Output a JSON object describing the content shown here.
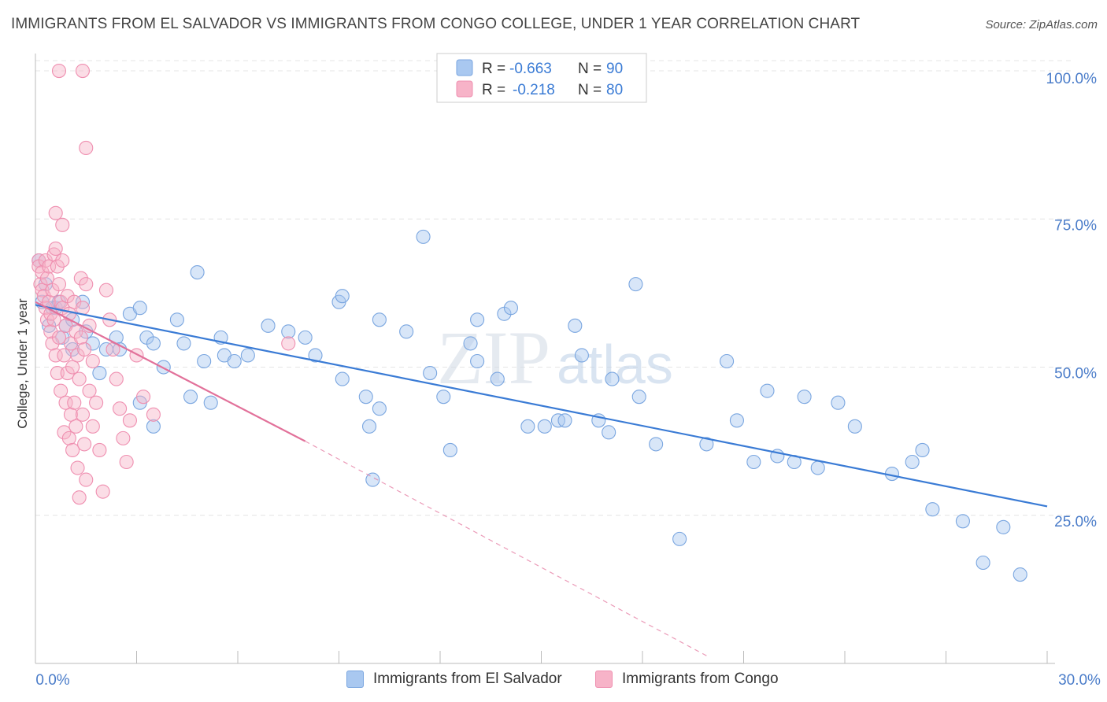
{
  "title": "IMMIGRANTS FROM EL SALVADOR VS IMMIGRANTS FROM CONGO COLLEGE, UNDER 1 YEAR CORRELATION CHART",
  "source": "Source: ZipAtlas.com",
  "watermark": {
    "zip": "ZIP",
    "atlas": "atlas"
  },
  "colors": {
    "blue_fill": "#a9c8f0",
    "blue_stroke": "#7aa6e0",
    "blue_line": "#3a7bd5",
    "pink_fill": "#f7b3c8",
    "pink_stroke": "#ef8fb0",
    "pink_line": "#e2719a",
    "axis_text": "#4a7cc9",
    "grid": "#e4e4e4"
  },
  "legend": {
    "rows": [
      {
        "r_label": "R =",
        "r_value": "-0.663",
        "n_label": "N =",
        "n_value": "90"
      },
      {
        "r_label": "R =",
        "r_value": "-0.218",
        "n_label": "N =",
        "n_value": "80"
      }
    ]
  },
  "chart_data": {
    "type": "scatter",
    "title": "IMMIGRANTS FROM EL SALVADOR VS IMMIGRANTS FROM CONGO COLLEGE, UNDER 1 YEAR CORRELATION CHART",
    "xlabel": "",
    "ylabel": "College, Under 1 year",
    "xlim": [
      0,
      30
    ],
    "ylim": [
      0,
      102
    ],
    "x_tick_labels": [
      "0.0%",
      "30.0%"
    ],
    "y_ticks": [
      25,
      50,
      75,
      100
    ],
    "y_tick_labels": [
      "25.0%",
      "50.0%",
      "75.0%",
      "100.0%"
    ],
    "grid": true,
    "legend_position": "top-center",
    "series": [
      {
        "name": "Immigrants from El Salvador",
        "color": "#a9c8f0",
        "trend": {
          "x": [
            0.0,
            30.0
          ],
          "y": [
            60.5,
            26.5
          ]
        },
        "points": [
          [
            0.1,
            68
          ],
          [
            0.2,
            61
          ],
          [
            0.3,
            64
          ],
          [
            0.4,
            57
          ],
          [
            0.5,
            60
          ],
          [
            0.6,
            60
          ],
          [
            0.7,
            61
          ],
          [
            0.8,
            55
          ],
          [
            0.9,
            57
          ],
          [
            1.1,
            58
          ],
          [
            1.1,
            53
          ],
          [
            1.4,
            61
          ],
          [
            1.5,
            56
          ],
          [
            1.7,
            54
          ],
          [
            1.9,
            49
          ],
          [
            2.1,
            53
          ],
          [
            2.4,
            55
          ],
          [
            2.5,
            53
          ],
          [
            2.8,
            59
          ],
          [
            3.1,
            60
          ],
          [
            3.1,
            44
          ],
          [
            3.3,
            55
          ],
          [
            3.5,
            54
          ],
          [
            3.5,
            40
          ],
          [
            3.8,
            50
          ],
          [
            4.2,
            58
          ],
          [
            4.4,
            54
          ],
          [
            4.6,
            45
          ],
          [
            4.8,
            66
          ],
          [
            5.0,
            51
          ],
          [
            5.2,
            44
          ],
          [
            5.5,
            55
          ],
          [
            5.6,
            52
          ],
          [
            5.9,
            51
          ],
          [
            6.3,
            52
          ],
          [
            6.9,
            57
          ],
          [
            7.5,
            56
          ],
          [
            8.0,
            55
          ],
          [
            8.3,
            52
          ],
          [
            9.0,
            61
          ],
          [
            9.1,
            62
          ],
          [
            9.1,
            48
          ],
          [
            9.8,
            45
          ],
          [
            9.9,
            40
          ],
          [
            10.0,
            31
          ],
          [
            10.2,
            43
          ],
          [
            10.2,
            58
          ],
          [
            11.0,
            56
          ],
          [
            11.5,
            72
          ],
          [
            11.7,
            49
          ],
          [
            12.1,
            45
          ],
          [
            12.3,
            36
          ],
          [
            12.9,
            54
          ],
          [
            13.1,
            51
          ],
          [
            13.1,
            58
          ],
          [
            13.7,
            48
          ],
          [
            13.9,
            59
          ],
          [
            14.1,
            60
          ],
          [
            14.6,
            40
          ],
          [
            15.1,
            40
          ],
          [
            15.5,
            41
          ],
          [
            15.7,
            41
          ],
          [
            16.0,
            57
          ],
          [
            16.2,
            52
          ],
          [
            16.7,
            41
          ],
          [
            17.0,
            39
          ],
          [
            17.1,
            48
          ],
          [
            17.8,
            64
          ],
          [
            17.9,
            45
          ],
          [
            18.4,
            37
          ],
          [
            19.1,
            21
          ],
          [
            19.9,
            37
          ],
          [
            20.5,
            51
          ],
          [
            20.8,
            41
          ],
          [
            21.3,
            34
          ],
          [
            21.7,
            46
          ],
          [
            22.0,
            35
          ],
          [
            22.5,
            34
          ],
          [
            22.8,
            45
          ],
          [
            23.2,
            33
          ],
          [
            23.8,
            44
          ],
          [
            24.3,
            40
          ],
          [
            25.4,
            32
          ],
          [
            26.0,
            34
          ],
          [
            26.3,
            36
          ],
          [
            26.6,
            26
          ],
          [
            27.5,
            24
          ],
          [
            28.1,
            17
          ],
          [
            28.7,
            23
          ],
          [
            29.2,
            15
          ]
        ]
      },
      {
        "name": "Immigrants from Congo",
        "color": "#f7b3c8",
        "trend": {
          "x": [
            0.0,
            8.0
          ],
          "y": [
            61.0,
            37.5
          ]
        },
        "trend_dashed": {
          "x": [
            8.0,
            20.0
          ],
          "y": [
            37.5,
            1.0
          ]
        },
        "points": [
          [
            0.1,
            68
          ],
          [
            0.1,
            67
          ],
          [
            0.15,
            64
          ],
          [
            0.2,
            66
          ],
          [
            0.2,
            63
          ],
          [
            0.25,
            62
          ],
          [
            0.3,
            68
          ],
          [
            0.3,
            60
          ],
          [
            0.35,
            65
          ],
          [
            0.35,
            58
          ],
          [
            0.4,
            67
          ],
          [
            0.4,
            61
          ],
          [
            0.45,
            56
          ],
          [
            0.45,
            59
          ],
          [
            0.5,
            63
          ],
          [
            0.5,
            54
          ],
          [
            0.55,
            69
          ],
          [
            0.55,
            58
          ],
          [
            0.6,
            70
          ],
          [
            0.6,
            52
          ],
          [
            0.65,
            67
          ],
          [
            0.65,
            49
          ],
          [
            0.7,
            64
          ],
          [
            0.7,
            55
          ],
          [
            0.75,
            61
          ],
          [
            0.75,
            46
          ],
          [
            0.8,
            68
          ],
          [
            0.8,
            60
          ],
          [
            0.85,
            52
          ],
          [
            0.85,
            39
          ],
          [
            0.9,
            57
          ],
          [
            0.9,
            44
          ],
          [
            0.95,
            62
          ],
          [
            0.95,
            49
          ],
          [
            1.0,
            59
          ],
          [
            1.0,
            38
          ],
          [
            1.05,
            54
          ],
          [
            1.05,
            42
          ],
          [
            1.1,
            50
          ],
          [
            1.1,
            36
          ],
          [
            1.15,
            61
          ],
          [
            1.15,
            44
          ],
          [
            1.2,
            56
          ],
          [
            1.2,
            40
          ],
          [
            1.25,
            52
          ],
          [
            1.25,
            33
          ],
          [
            1.3,
            48
          ],
          [
            1.3,
            28
          ],
          [
            1.35,
            65
          ],
          [
            1.35,
            55
          ],
          [
            1.4,
            60
          ],
          [
            1.4,
            42
          ],
          [
            1.45,
            53
          ],
          [
            1.45,
            37
          ],
          [
            1.5,
            64
          ],
          [
            1.5,
            31
          ],
          [
            1.6,
            57
          ],
          [
            1.6,
            46
          ],
          [
            1.7,
            51
          ],
          [
            1.7,
            40
          ],
          [
            1.8,
            44
          ],
          [
            1.9,
            36
          ],
          [
            2.0,
            29
          ],
          [
            2.1,
            63
          ],
          [
            2.2,
            58
          ],
          [
            2.3,
            53
          ],
          [
            2.4,
            48
          ],
          [
            2.5,
            43
          ],
          [
            2.6,
            38
          ],
          [
            2.7,
            34
          ],
          [
            2.8,
            41
          ],
          [
            3.0,
            52
          ],
          [
            3.2,
            45
          ],
          [
            3.5,
            42
          ],
          [
            0.6,
            76
          ],
          [
            0.7,
            100
          ],
          [
            1.4,
            100
          ],
          [
            1.5,
            87
          ],
          [
            0.8,
            74
          ],
          [
            7.5,
            54
          ]
        ]
      }
    ]
  },
  "x_axis": {
    "min_label": "0.0%",
    "max_label": "30.0%"
  },
  "y_axis": {
    "label": "College, Under 1 year"
  },
  "bottom_legend": [
    {
      "label": "Immigrants from El Salvador"
    },
    {
      "label": "Immigrants from Congo"
    }
  ]
}
